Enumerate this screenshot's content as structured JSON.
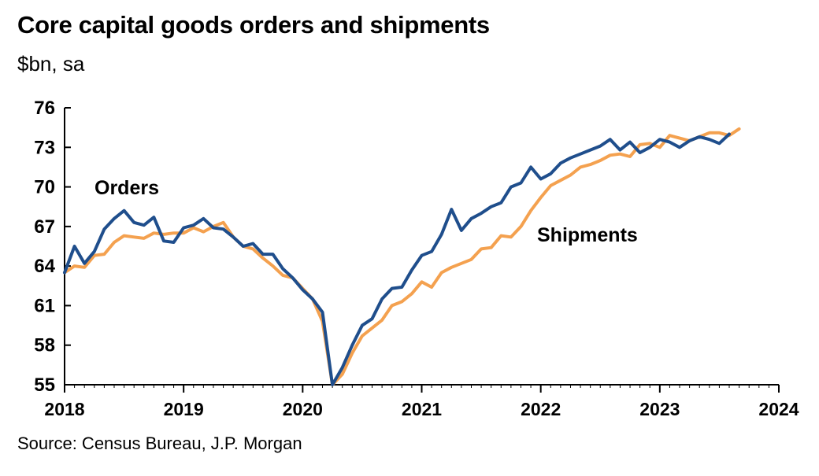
{
  "title": "Core capital goods orders and shipments",
  "subtitle": "$bn, sa",
  "source": "Source: Census Bureau, J.P. Morgan",
  "colors": {
    "orders": "#1f4e8c",
    "shipments": "#f4a14f",
    "axis": "#000000"
  },
  "chart_data": {
    "type": "line",
    "ylim": [
      55,
      76
    ],
    "yticks": [
      55,
      58,
      61,
      64,
      67,
      70,
      73,
      76
    ],
    "xlim": [
      "2018-01",
      "2024-01"
    ],
    "xticks": [
      "2018",
      "2019",
      "2020",
      "2021",
      "2022",
      "2023",
      "2024"
    ],
    "grid": false,
    "legend": "inline labels",
    "x_start": "2018-01",
    "x_frequency": "monthly",
    "series": [
      {
        "name": "Orders",
        "values": [
          63.5,
          65.5,
          64.2,
          65.1,
          66.8,
          67.6,
          68.2,
          67.3,
          67.1,
          67.7,
          65.9,
          65.8,
          66.9,
          67.1,
          67.6,
          66.9,
          66.8,
          66.2,
          65.5,
          65.7,
          64.9,
          64.9,
          63.8,
          63.1,
          62.2,
          61.5,
          60.5,
          55.0,
          56.3,
          58.0,
          59.5,
          60.0,
          61.5,
          62.3,
          62.4,
          63.7,
          64.8,
          65.1,
          66.4,
          68.3,
          66.7,
          67.6,
          68.0,
          68.5,
          68.8,
          70.0,
          70.3,
          71.5,
          70.6,
          71.0,
          71.8,
          72.2,
          72.5,
          72.8,
          73.1,
          73.6,
          72.8,
          73.4,
          72.6,
          73.0,
          73.6,
          73.4,
          73.0,
          73.5,
          73.8,
          73.6,
          73.3,
          74.0
        ],
        "label": "Orders"
      },
      {
        "name": "Shipments",
        "values": [
          63.5,
          64.0,
          63.9,
          64.8,
          64.9,
          65.8,
          66.3,
          66.2,
          66.1,
          66.5,
          66.4,
          66.5,
          66.5,
          66.9,
          66.6,
          67.0,
          67.3,
          66.2,
          65.5,
          65.3,
          64.6,
          64.0,
          63.3,
          63.1,
          62.3,
          61.5,
          59.8,
          55.0,
          55.8,
          57.4,
          58.7,
          59.3,
          59.9,
          61.0,
          61.3,
          61.9,
          62.8,
          62.4,
          63.5,
          63.9,
          64.2,
          64.5,
          65.3,
          65.4,
          66.3,
          66.2,
          67.0,
          68.2,
          69.2,
          70.1,
          70.5,
          70.9,
          71.5,
          71.7,
          72.0,
          72.4,
          72.5,
          72.3,
          73.2,
          73.3,
          73.0,
          73.9,
          73.7,
          73.5,
          73.8,
          74.1,
          74.1,
          73.9,
          74.4
        ],
        "label": "Shipments"
      }
    ]
  }
}
